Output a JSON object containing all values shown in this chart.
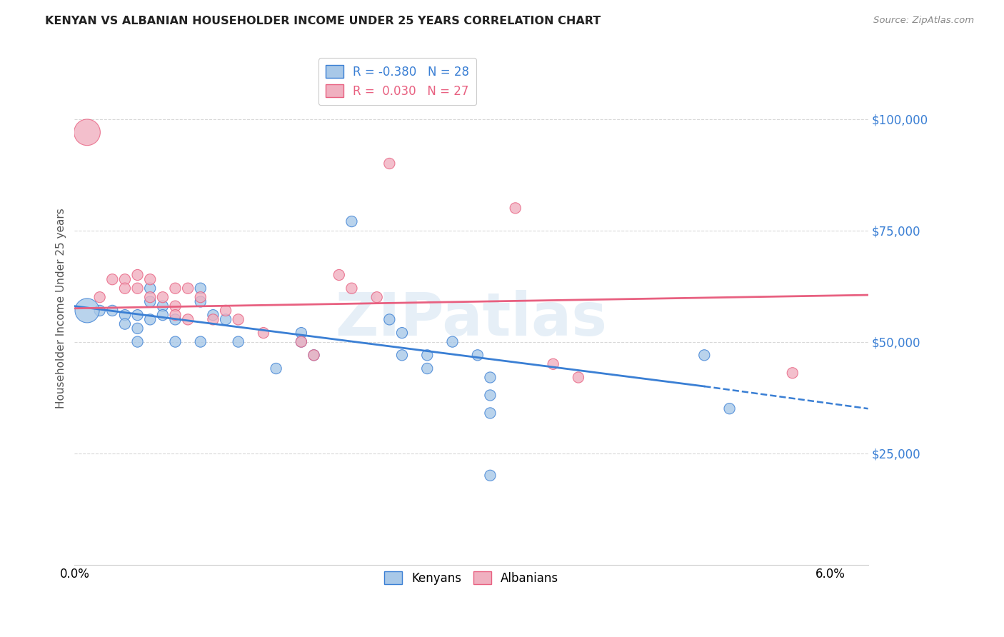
{
  "title": "KENYAN VS ALBANIAN HOUSEHOLDER INCOME UNDER 25 YEARS CORRELATION CHART",
  "source": "Source: ZipAtlas.com",
  "ylabel": "Householder Income Under 25 years",
  "xlim": [
    0.0,
    0.063
  ],
  "ylim": [
    0,
    115000
  ],
  "yticks": [
    25000,
    50000,
    75000,
    100000
  ],
  "ytick_labels": [
    "$25,000",
    "$50,000",
    "$75,000",
    "$100,000"
  ],
  "xticks": [
    0.0,
    0.01,
    0.02,
    0.03,
    0.04,
    0.05,
    0.06
  ],
  "xtick_labels": [
    "0.0%",
    "",
    "",
    "",
    "",
    "",
    "6.0%"
  ],
  "watermark": "ZIPatlas",
  "legend_blue_r": "-0.380",
  "legend_blue_n": "28",
  "legend_pink_r": "0.030",
  "legend_pink_n": "27",
  "blue_color": "#a8c8e8",
  "pink_color": "#f0b0c0",
  "blue_line_color": "#3a7fd4",
  "pink_line_color": "#e86080",
  "blue_scatter": [
    [
      0.002,
      57000
    ],
    [
      0.003,
      57000
    ],
    [
      0.004,
      56000
    ],
    [
      0.004,
      54000
    ],
    [
      0.005,
      56000
    ],
    [
      0.005,
      53000
    ],
    [
      0.005,
      50000
    ],
    [
      0.006,
      62000
    ],
    [
      0.006,
      59000
    ],
    [
      0.006,
      55000
    ],
    [
      0.007,
      58000
    ],
    [
      0.007,
      56000
    ],
    [
      0.008,
      55000
    ],
    [
      0.008,
      50000
    ],
    [
      0.01,
      62000
    ],
    [
      0.01,
      59000
    ],
    [
      0.01,
      50000
    ],
    [
      0.011,
      56000
    ],
    [
      0.012,
      55000
    ],
    [
      0.013,
      50000
    ],
    [
      0.016,
      44000
    ],
    [
      0.018,
      52000
    ],
    [
      0.018,
      50000
    ],
    [
      0.019,
      47000
    ],
    [
      0.022,
      77000
    ],
    [
      0.025,
      55000
    ],
    [
      0.026,
      52000
    ],
    [
      0.026,
      47000
    ],
    [
      0.028,
      47000
    ],
    [
      0.028,
      44000
    ],
    [
      0.03,
      50000
    ],
    [
      0.032,
      47000
    ],
    [
      0.033,
      42000
    ],
    [
      0.033,
      38000
    ],
    [
      0.033,
      34000
    ],
    [
      0.033,
      20000
    ],
    [
      0.05,
      47000
    ],
    [
      0.052,
      35000
    ],
    [
      0.001,
      57000
    ]
  ],
  "blue_scatter_sizes": [
    120,
    120,
    120,
    120,
    120,
    120,
    120,
    120,
    120,
    120,
    120,
    120,
    120,
    120,
    120,
    120,
    120,
    120,
    120,
    120,
    120,
    120,
    120,
    120,
    120,
    120,
    120,
    120,
    120,
    120,
    120,
    120,
    120,
    120,
    120,
    120,
    120,
    120,
    600
  ],
  "pink_scatter": [
    [
      0.002,
      60000
    ],
    [
      0.003,
      64000
    ],
    [
      0.004,
      64000
    ],
    [
      0.004,
      62000
    ],
    [
      0.005,
      65000
    ],
    [
      0.005,
      62000
    ],
    [
      0.006,
      64000
    ],
    [
      0.006,
      60000
    ],
    [
      0.007,
      60000
    ],
    [
      0.008,
      62000
    ],
    [
      0.008,
      58000
    ],
    [
      0.008,
      56000
    ],
    [
      0.009,
      62000
    ],
    [
      0.009,
      55000
    ],
    [
      0.01,
      60000
    ],
    [
      0.011,
      55000
    ],
    [
      0.012,
      57000
    ],
    [
      0.013,
      55000
    ],
    [
      0.015,
      52000
    ],
    [
      0.018,
      50000
    ],
    [
      0.019,
      47000
    ],
    [
      0.021,
      65000
    ],
    [
      0.022,
      62000
    ],
    [
      0.024,
      60000
    ],
    [
      0.025,
      90000
    ],
    [
      0.035,
      80000
    ],
    [
      0.038,
      45000
    ],
    [
      0.04,
      42000
    ],
    [
      0.057,
      43000
    ],
    [
      0.001,
      97000
    ]
  ],
  "pink_scatter_sizes": [
    120,
    120,
    120,
    120,
    120,
    120,
    120,
    120,
    120,
    120,
    120,
    120,
    120,
    120,
    120,
    120,
    120,
    120,
    120,
    120,
    120,
    120,
    120,
    120,
    120,
    120,
    120,
    120,
    120,
    700
  ],
  "background_color": "#ffffff",
  "grid_color": "#d8d8d8"
}
